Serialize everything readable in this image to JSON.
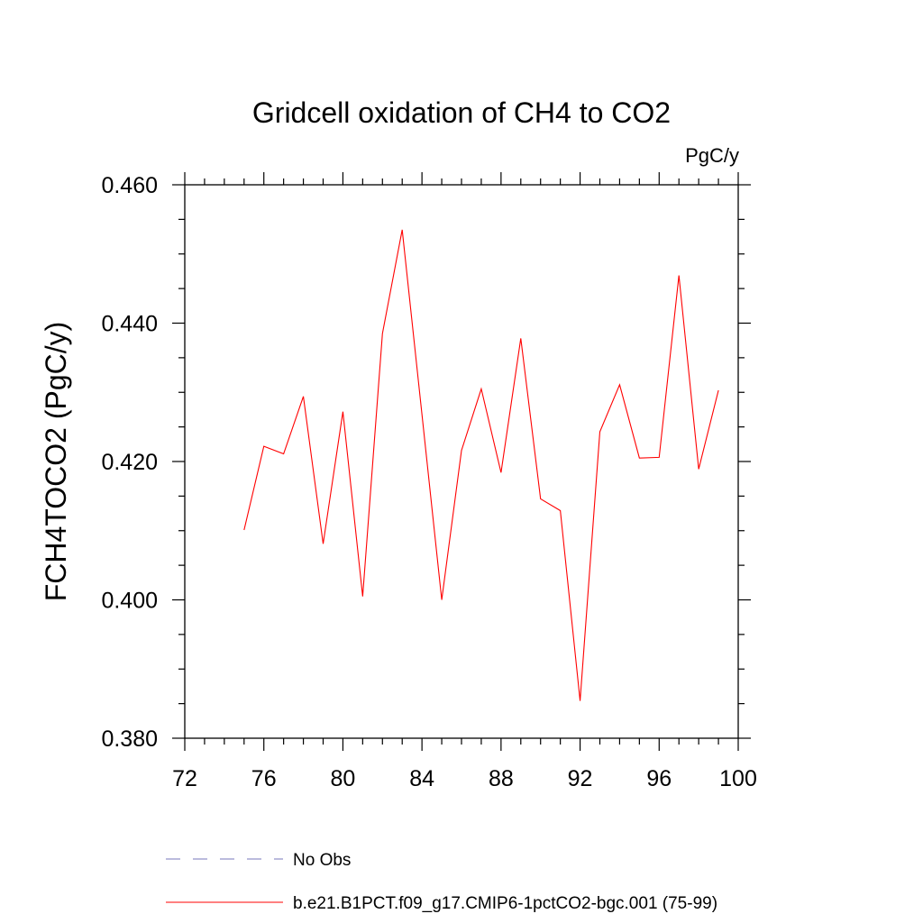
{
  "chart_data": {
    "type": "line",
    "title": "Gridcell oxidation of CH4 to CO2",
    "units": "PgC/y",
    "xlabel": "",
    "ylabel": "FCH4TOCO2  (PgC/y)",
    "xlim": [
      72,
      100
    ],
    "ylim": [
      0.38,
      0.46
    ],
    "xticks": [
      72,
      76,
      80,
      84,
      88,
      92,
      96,
      100
    ],
    "xtick_labels": [
      "72",
      "76",
      "80",
      "84",
      "88",
      "92",
      "96",
      "100"
    ],
    "yticks": [
      0.38,
      0.4,
      0.42,
      0.44,
      0.46
    ],
    "ytick_labels": [
      "0.380",
      "0.400",
      "0.420",
      "0.440",
      "0.460"
    ],
    "grid": false,
    "legend_position": "bottom",
    "series": [
      {
        "name": "b.e21.B1PCT.f09_g17.CMIP6-1pctCO2-bgc.001 (75-99)",
        "color": "#ff0000",
        "dash": "solid",
        "x": [
          75,
          76,
          77,
          78,
          79,
          80,
          81,
          82,
          83,
          84,
          85,
          86,
          87,
          88,
          89,
          90,
          91,
          92,
          93,
          94,
          95,
          96,
          97,
          98,
          99
        ],
        "values": [
          0.4101,
          0.4222,
          0.4211,
          0.4294,
          0.4081,
          0.4272,
          0.4005,
          0.4385,
          0.4535,
          0.4268,
          0.4,
          0.4216,
          0.4305,
          0.4184,
          0.4378,
          0.4146,
          0.4129,
          0.3854,
          0.4243,
          0.4311,
          0.4205,
          0.4206,
          0.4469,
          0.4189,
          0.4303
        ]
      }
    ],
    "legend": [
      {
        "label": "No Obs",
        "color": "#7777bb",
        "dash": "dashed"
      },
      {
        "label": "b.e21.B1PCT.f09_g17.CMIP6-1pctCO2-bgc.001 (75-99)",
        "color": "#ff0000",
        "dash": "solid"
      }
    ]
  }
}
